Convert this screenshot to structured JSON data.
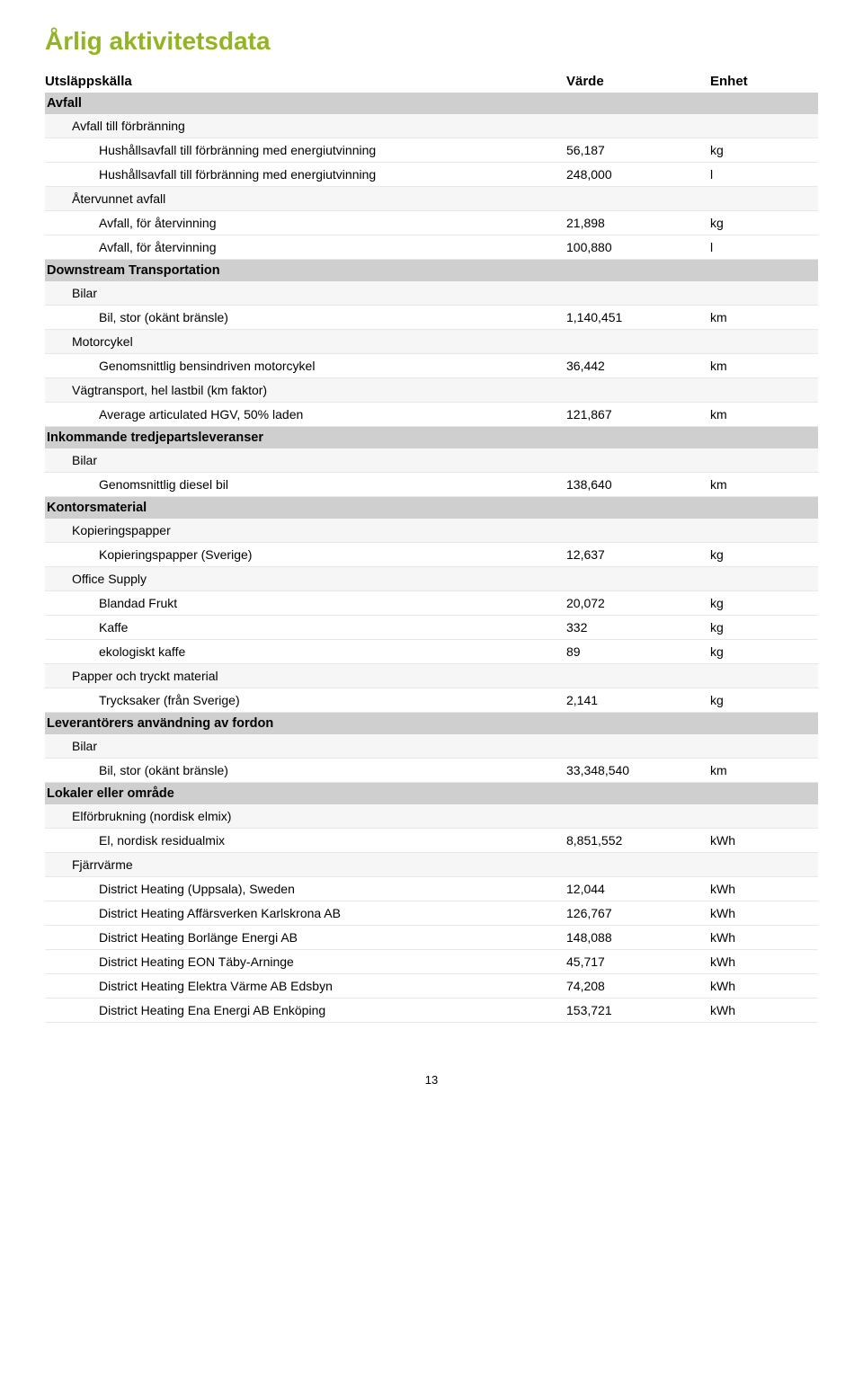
{
  "page": {
    "title": "Årlig aktivitetsdata",
    "title_color": "#93b426",
    "number": "13"
  },
  "header": {
    "label": "Utsläppskälla",
    "value": "Värde",
    "unit": "Enhet"
  },
  "colors": {
    "section_bg": "#cfcfcf",
    "group_bg": "#f6f6f6",
    "row_border": "#e7e7e7",
    "text": "#000000",
    "background": "#ffffff"
  },
  "sections": [
    {
      "title": "Avfall",
      "groups": [
        {
          "title": "Avfall till förbränning",
          "rows": [
            {
              "label": "Hushållsavfall till förbränning med energiutvinning",
              "value": "56,187",
              "unit": "kg"
            },
            {
              "label": "Hushållsavfall till förbränning med energiutvinning",
              "value": "248,000",
              "unit": "l"
            }
          ]
        },
        {
          "title": "Återvunnet avfall",
          "rows": [
            {
              "label": "Avfall, för återvinning",
              "value": "21,898",
              "unit": "kg"
            },
            {
              "label": "Avfall, för återvinning",
              "value": "100,880",
              "unit": "l"
            }
          ]
        }
      ]
    },
    {
      "title": "Downstream Transportation",
      "groups": [
        {
          "title": "Bilar",
          "rows": [
            {
              "label": "Bil, stor (okänt bränsle)",
              "value": "1,140,451",
              "unit": "km"
            }
          ]
        },
        {
          "title": "Motorcykel",
          "rows": [
            {
              "label": "Genomsnittlig bensindriven motorcykel",
              "value": "36,442",
              "unit": "km"
            }
          ]
        },
        {
          "title": "Vägtransport, hel lastbil (km faktor)",
          "rows": [
            {
              "label": "Average articulated HGV, 50% laden",
              "value": "121,867",
              "unit": "km"
            }
          ]
        }
      ]
    },
    {
      "title": "Inkommande tredjepartsleveranser",
      "groups": [
        {
          "title": "Bilar",
          "rows": [
            {
              "label": "Genomsnittlig diesel bil",
              "value": "138,640",
              "unit": "km"
            }
          ]
        }
      ]
    },
    {
      "title": "Kontorsmaterial",
      "groups": [
        {
          "title": "Kopieringspapper",
          "rows": [
            {
              "label": "Kopieringspapper (Sverige)",
              "value": "12,637",
              "unit": "kg"
            }
          ]
        },
        {
          "title": "Office Supply",
          "rows": [
            {
              "label": "Blandad Frukt",
              "value": "20,072",
              "unit": "kg"
            },
            {
              "label": "Kaffe",
              "value": "332",
              "unit": "kg"
            },
            {
              "label": "ekologiskt kaffe",
              "value": "89",
              "unit": "kg"
            }
          ]
        },
        {
          "title": "Papper och tryckt material",
          "rows": [
            {
              "label": "Trycksaker (från Sverige)",
              "value": "2,141",
              "unit": "kg"
            }
          ]
        }
      ]
    },
    {
      "title": "Leverantörers användning av fordon",
      "groups": [
        {
          "title": "Bilar",
          "rows": [
            {
              "label": "Bil, stor (okänt bränsle)",
              "value": "33,348,540",
              "unit": "km"
            }
          ]
        }
      ]
    },
    {
      "title": "Lokaler eller område",
      "groups": [
        {
          "title": "Elförbrukning (nordisk elmix)",
          "rows": [
            {
              "label": "El, nordisk residualmix",
              "value": "8,851,552",
              "unit": "kWh"
            }
          ]
        },
        {
          "title": "Fjärrvärme",
          "rows": [
            {
              "label": "District Heating (Uppsala), Sweden",
              "value": "12,044",
              "unit": "kWh"
            },
            {
              "label": "District Heating Affärsverken Karlskrona AB",
              "value": "126,767",
              "unit": "kWh"
            },
            {
              "label": "District Heating Borlänge Energi AB",
              "value": "148,088",
              "unit": "kWh"
            },
            {
              "label": "District Heating EON Täby-Arninge",
              "value": "45,717",
              "unit": "kWh"
            },
            {
              "label": "District Heating Elektra Värme AB Edsbyn",
              "value": "74,208",
              "unit": "kWh"
            },
            {
              "label": "District Heating Ena Energi AB Enköping",
              "value": "153,721",
              "unit": "kWh"
            }
          ]
        }
      ]
    }
  ]
}
